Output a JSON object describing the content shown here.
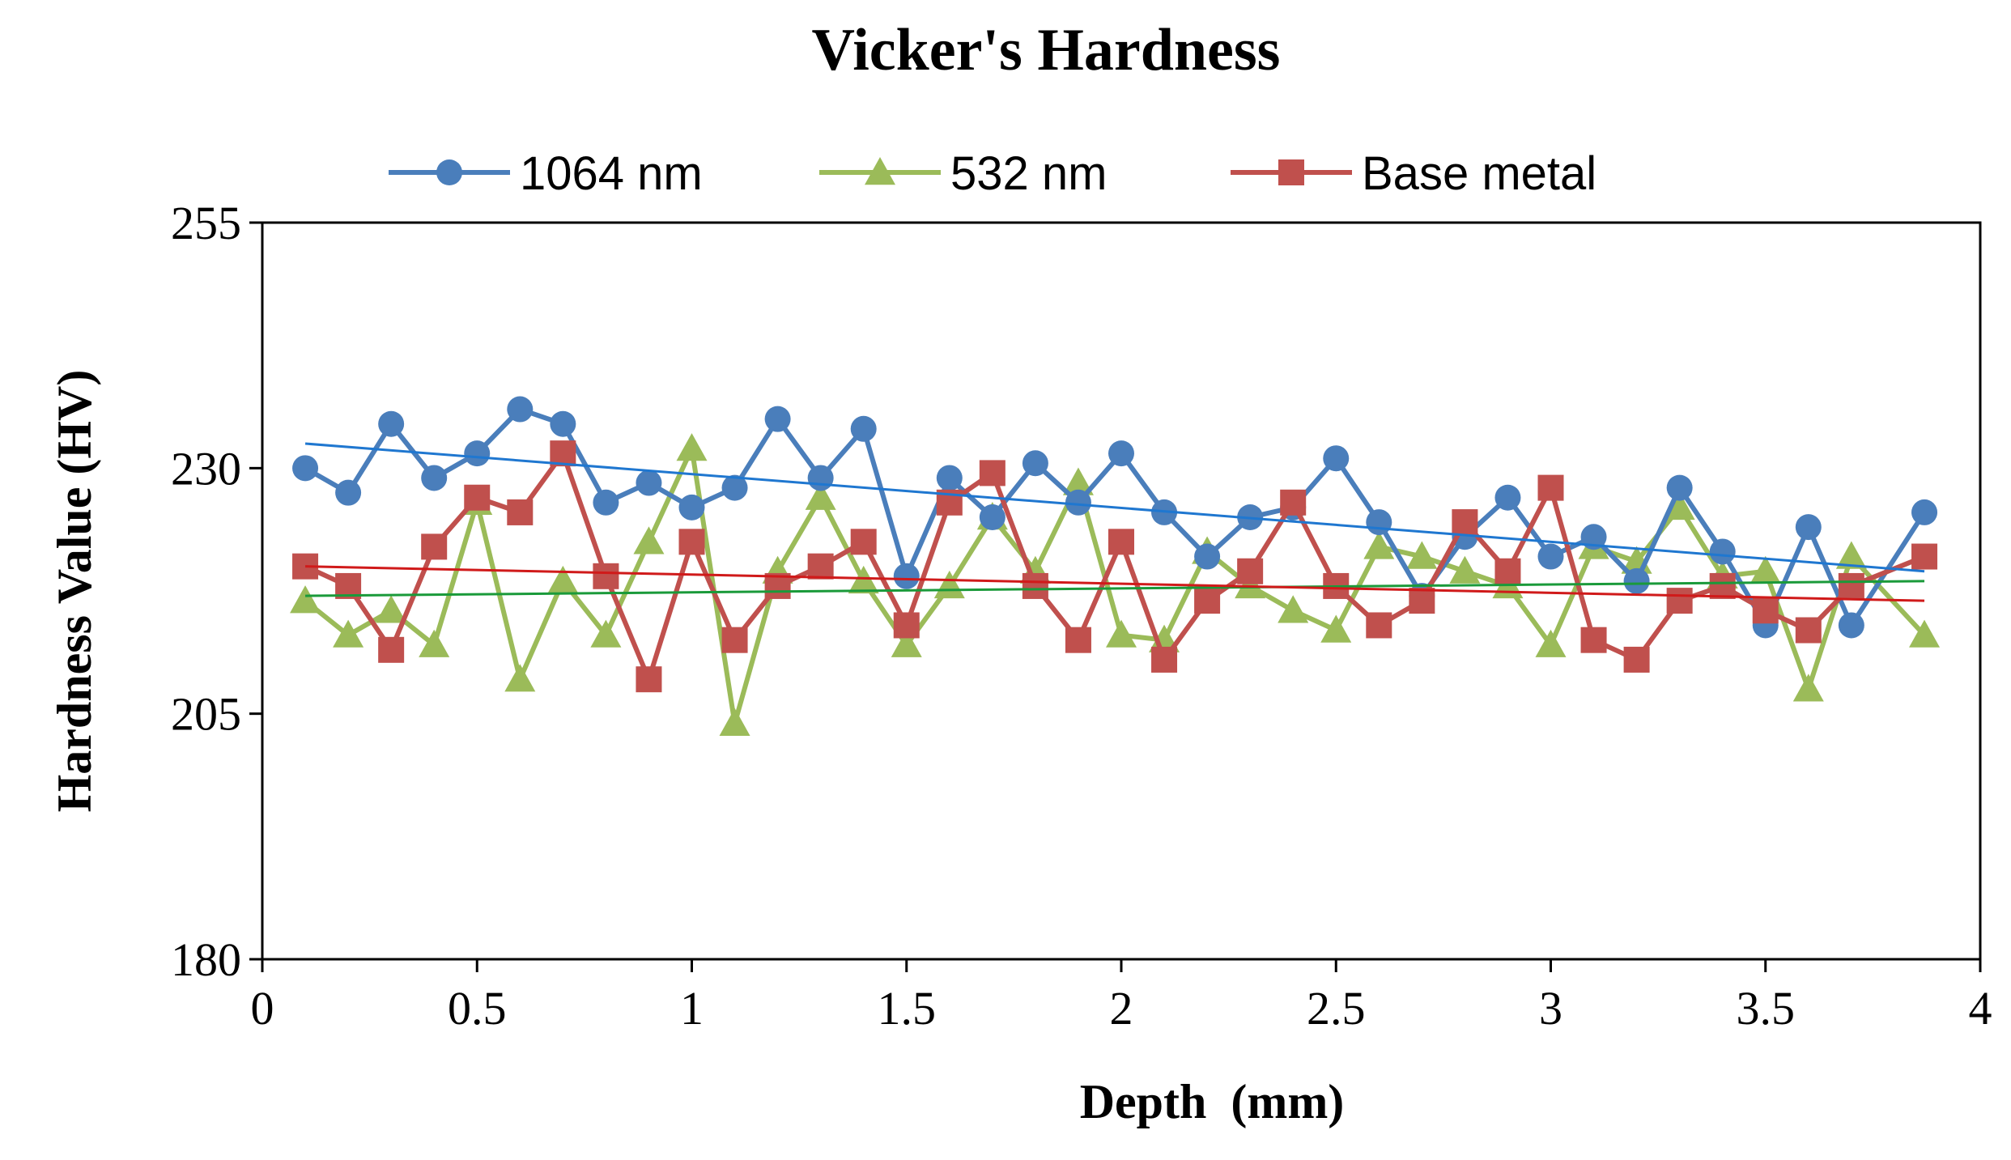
{
  "chart_data": {
    "type": "line",
    "title": "Vicker's Hardness",
    "xlabel": "Depth  (mm)",
    "ylabel": "Hardness Value (HV)",
    "xlim": [
      0,
      4
    ],
    "ylim": [
      180,
      255
    ],
    "xticks": [
      0,
      0.5,
      1,
      1.5,
      2,
      2.5,
      3,
      3.5,
      4
    ],
    "xtick_labels": [
      "0",
      "0.5",
      "1",
      "1.5",
      "2",
      "2.5",
      "3",
      "3.5",
      "4"
    ],
    "yticks": [
      180,
      205,
      230,
      255
    ],
    "ytick_labels": [
      "180",
      "205",
      "230",
      "255"
    ],
    "grid": false,
    "legend_position": "top",
    "x": [
      0.1,
      0.2,
      0.3,
      0.4,
      0.5,
      0.6,
      0.7,
      0.8,
      0.9,
      1.0,
      1.1,
      1.2,
      1.3,
      1.4,
      1.5,
      1.6,
      1.7,
      1.8,
      1.9,
      2.0,
      2.1,
      2.2,
      2.3,
      2.4,
      2.5,
      2.6,
      2.7,
      2.8,
      2.9,
      3.0,
      3.1,
      3.2,
      3.3,
      3.4,
      3.5,
      3.6,
      3.7,
      3.87
    ],
    "series": [
      {
        "name": "1064 nm",
        "color": "#4a7ebb",
        "marker": "circle",
        "values": [
          230,
          227.5,
          234.5,
          229,
          231.5,
          236,
          234.5,
          226.5,
          228.5,
          226,
          228,
          235,
          229,
          234,
          219,
          229,
          225,
          230.5,
          226.5,
          231.5,
          225.5,
          221,
          225,
          226,
          231,
          224.5,
          217,
          223,
          227,
          221,
          223,
          218.5,
          228,
          221.5,
          214,
          224,
          214,
          225.5
        ],
        "trend": {
          "x": [
            0.1,
            3.87
          ],
          "values": [
            232.5,
            219.5
          ],
          "color": "#1f77d0"
        }
      },
      {
        "name": "532 nm",
        "color": "#9bbb59",
        "marker": "triangle",
        "values": [
          216.5,
          213,
          215.5,
          212,
          226.5,
          208.5,
          218.5,
          213,
          222.5,
          232,
          204,
          219.5,
          227,
          218.5,
          212,
          218,
          225,
          219.5,
          228.5,
          213,
          212.5,
          221.5,
          218,
          215.5,
          213.5,
          222,
          221,
          219.5,
          218,
          212,
          222,
          220.5,
          226,
          219,
          219.5,
          207.5,
          221,
          213
        ],
        "trend": {
          "x": [
            0.1,
            3.87
          ],
          "values": [
            217,
            218.5
          ],
          "color": "#1a9a3a"
        }
      },
      {
        "name": "Base metal",
        "color": "#c0504d",
        "marker": "square",
        "values": [
          220,
          218,
          211.5,
          222,
          227,
          225.5,
          231.5,
          219,
          208.5,
          222.5,
          212.5,
          218,
          220,
          222.5,
          214,
          226.5,
          229.5,
          218,
          212.5,
          222.5,
          210.5,
          216.5,
          219.5,
          226.5,
          218,
          214,
          216.5,
          224.5,
          219.5,
          228,
          212.5,
          210.5,
          216.5,
          218,
          215.5,
          213.5,
          218,
          221
        ],
        "trend": {
          "x": [
            0.1,
            3.87
          ],
          "values": [
            220,
            216.5
          ],
          "color": "#d01a1a"
        }
      }
    ]
  }
}
